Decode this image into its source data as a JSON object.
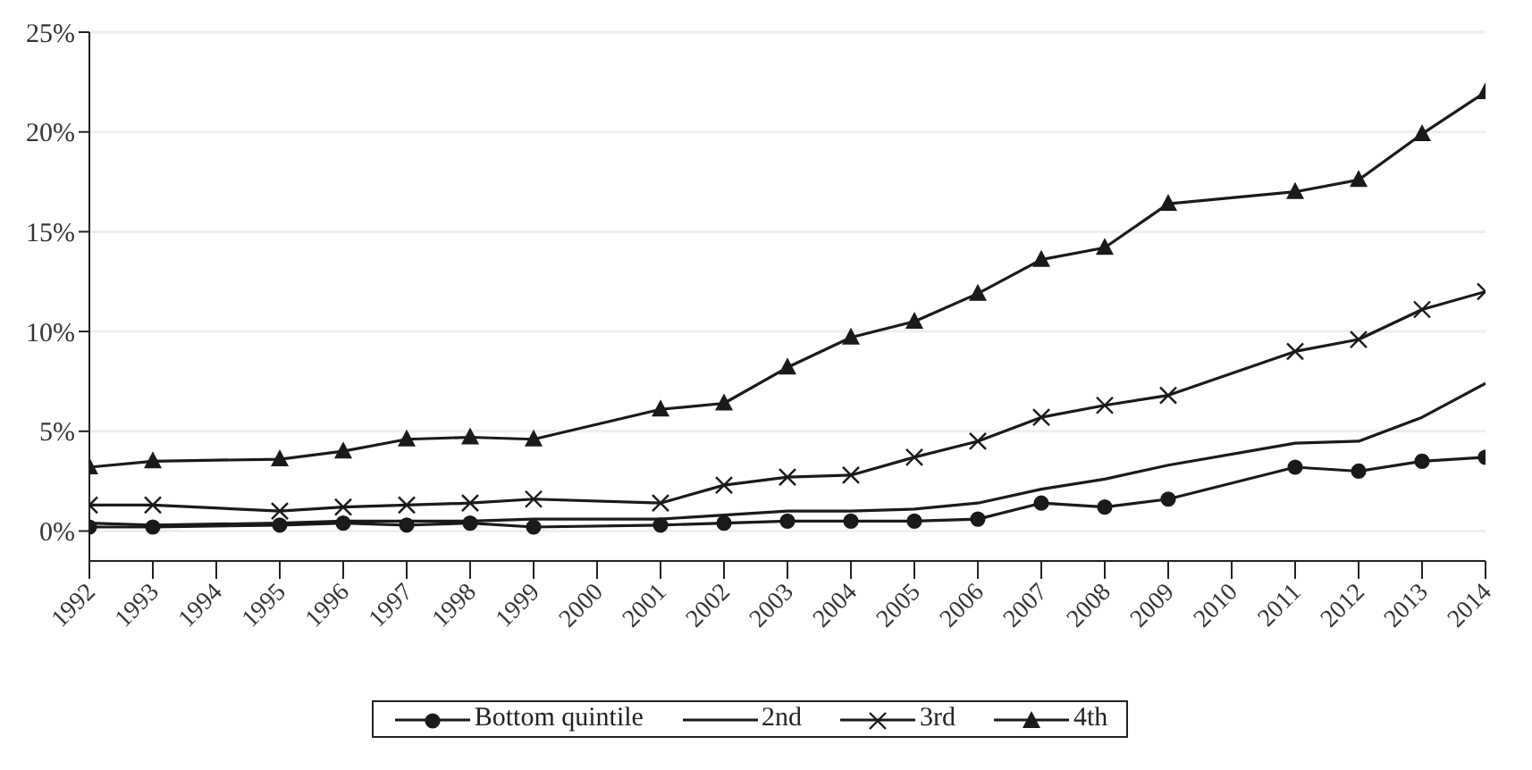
{
  "chart_data": {
    "type": "line",
    "x": [
      1992,
      1993,
      1995,
      1996,
      1997,
      1998,
      1999,
      2001,
      2002,
      2003,
      2004,
      2005,
      2006,
      2007,
      2008,
      2009,
      2011,
      2012,
      2013,
      2014
    ],
    "series": [
      {
        "name": "Bottom quintile",
        "color": "#1a1a1a",
        "marker": "circle",
        "values": [
          0.2,
          0.2,
          0.3,
          0.4,
          0.3,
          0.4,
          0.2,
          0.3,
          0.4,
          0.5,
          0.5,
          0.5,
          0.6,
          1.4,
          1.2,
          1.6,
          3.2,
          3.0,
          3.5,
          3.7
        ]
      },
      {
        "name": "2nd",
        "color": "#1a1a1a",
        "marker": "none",
        "values": [
          0.4,
          0.3,
          0.4,
          0.5,
          0.5,
          0.5,
          0.6,
          0.6,
          0.8,
          1.0,
          1.0,
          1.1,
          1.4,
          2.1,
          2.6,
          3.3,
          4.4,
          4.5,
          5.7,
          7.4
        ]
      },
      {
        "name": "3rd",
        "color": "#1a1a1a",
        "marker": "cross",
        "values": [
          1.3,
          1.3,
          1.0,
          1.2,
          1.3,
          1.4,
          1.6,
          1.4,
          2.3,
          2.7,
          2.8,
          3.7,
          4.5,
          5.7,
          6.3,
          6.8,
          9.0,
          9.6,
          11.1,
          12.0
        ]
      },
      {
        "name": "4th",
        "color": "#1a1a1a",
        "marker": "triangle",
        "values": [
          3.2,
          3.5,
          3.6,
          4.0,
          4.6,
          4.7,
          4.6,
          6.1,
          6.4,
          8.2,
          9.7,
          10.5,
          11.9,
          13.6,
          14.2,
          16.4,
          17.0,
          17.6,
          19.9,
          22.0
        ]
      }
    ],
    "xlim": [
      1992,
      2014
    ],
    "xticks": [
      1992,
      1993,
      1994,
      1995,
      1996,
      1997,
      1998,
      1999,
      2000,
      2001,
      2002,
      2003,
      2004,
      2005,
      2006,
      2007,
      2008,
      2009,
      2010,
      2011,
      2012,
      2013,
      2014
    ],
    "ylim": [
      -1.5,
      25
    ],
    "yticks": [
      {
        "value": 0,
        "label": "0%"
      },
      {
        "value": 5,
        "label": "5%"
      },
      {
        "value": 10,
        "label": "10%"
      },
      {
        "value": 15,
        "label": "15%"
      },
      {
        "value": 20,
        "label": "20%"
      },
      {
        "value": 25,
        "label": "25%"
      }
    ],
    "grid": "y",
    "legend": "bottom",
    "line_style": "solid"
  }
}
